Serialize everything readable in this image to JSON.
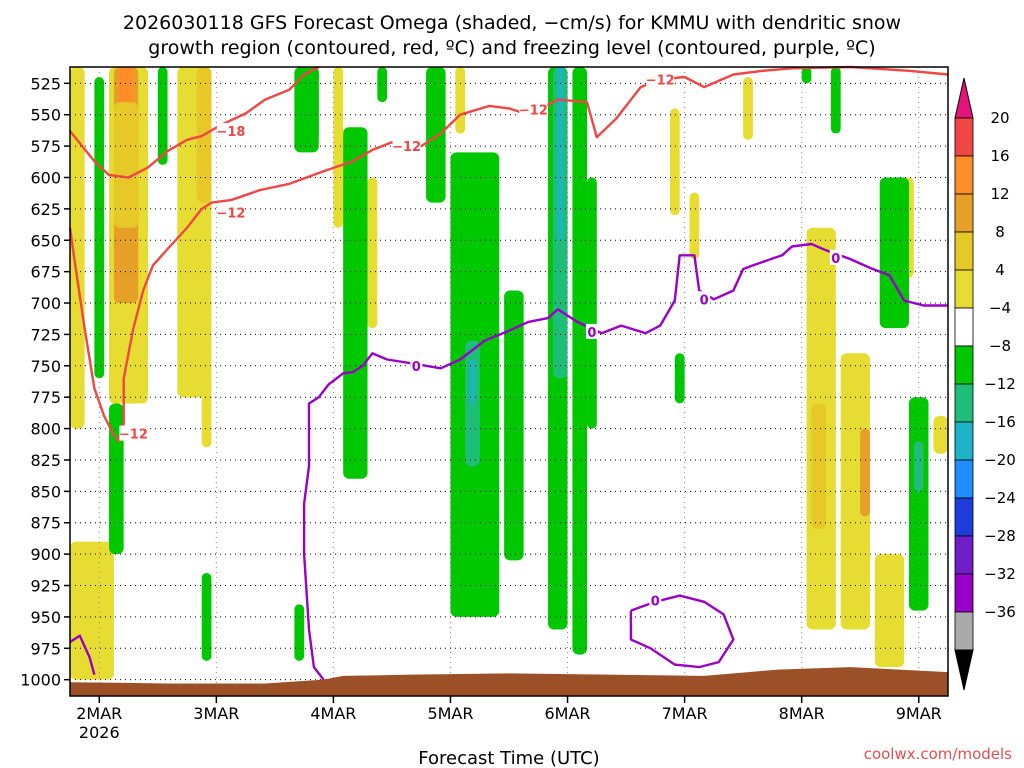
{
  "title_line1": "2026030118 GFS Forecast Omega (shaded, −cm/s) for KMMU with dendritic snow",
  "title_line2": "growth region (contoured, red, ºC) and freezing level (contoured, purple, ºC)",
  "credit": "coolwx.com/models",
  "colors": {
    "snow_contour": "#f04646",
    "freezing_contour": "#9a00c8",
    "ground": "#9c5028"
  },
  "chart_data": {
    "type": "heatmap",
    "title": "2026030118 GFS Forecast Omega (shaded, −cm/s) for KMMU with dendritic snow growth region (contoured, red, ºC) and freezing level (contoured, purple, ºC)",
    "xlabel": "Forecast Time (UTC)",
    "x_unit": "hours",
    "x_ticks": [
      {
        "hour": 6,
        "label": "2MAR",
        "sublabel": "2026"
      },
      {
        "hour": 30,
        "label": "3MAR",
        "sublabel": ""
      },
      {
        "hour": 54,
        "label": "4MAR",
        "sublabel": ""
      },
      {
        "hour": 78,
        "label": "5MAR",
        "sublabel": ""
      },
      {
        "hour": 102,
        "label": "6MAR",
        "sublabel": ""
      },
      {
        "hour": 126,
        "label": "7MAR",
        "sublabel": ""
      },
      {
        "hour": 150,
        "label": "8MAR",
        "sublabel": ""
      },
      {
        "hour": 174,
        "label": "9MAR",
        "sublabel": ""
      }
    ],
    "xlim": [
      0,
      180
    ],
    "y_ticks": [
      525,
      550,
      575,
      600,
      625,
      650,
      675,
      700,
      725,
      750,
      775,
      800,
      825,
      850,
      875,
      900,
      925,
      950,
      975,
      1000
    ],
    "ylim": [
      512,
      1013
    ],
    "colorbar": {
      "labels": [
        "20",
        "16",
        "12",
        "8",
        "4",
        "−4",
        "−8",
        "−12",
        "−16",
        "−20",
        "−24",
        "−28",
        "−32",
        "−36"
      ],
      "colors": [
        "#f04646",
        "#ff8c28",
        "#e6a028",
        "#e6c828",
        "#e6dc32",
        "#ffffff",
        "#00c800",
        "#1ebe78",
        "#1eb4c8",
        "#1e8cff",
        "#1e3cdc",
        "#6e1ec8",
        "#9600c8",
        "#aaaaaa"
      ],
      "top_arrow_color": "#e6147a",
      "bottom_arrow_color": "#000000"
    },
    "omega_regions": [
      {
        "value": 4,
        "t0": 0,
        "t1": 3,
        "p0": 512,
        "p1": 800
      },
      {
        "value": 4,
        "t0": 8,
        "t1": 16,
        "p0": 512,
        "p1": 780
      },
      {
        "value": 12,
        "t0": 9,
        "t1": 14,
        "p0": 512,
        "p1": 700
      },
      {
        "value": 16,
        "t0": 10,
        "t1": 13,
        "p0": 512,
        "p1": 550
      },
      {
        "value": 8,
        "t0": 9,
        "t1": 14,
        "p0": 540,
        "p1": 640
      },
      {
        "value": 4,
        "t0": 22,
        "t1": 29,
        "p0": 512,
        "p1": 775
      },
      {
        "value": 8,
        "t0": 26,
        "t1": 29,
        "p0": 512,
        "p1": 620
      },
      {
        "value": 4,
        "t0": 27,
        "t1": 29,
        "p0": 760,
        "p1": 815
      },
      {
        "value": 4,
        "t0": 0,
        "t1": 9,
        "p0": 890,
        "p1": 1000
      },
      {
        "value": -4,
        "t0": 5,
        "t1": 7,
        "p0": 520,
        "p1": 760
      },
      {
        "value": -4,
        "t0": 18,
        "t1": 20,
        "p0": 512,
        "p1": 590
      },
      {
        "value": -4,
        "t0": 8,
        "t1": 11,
        "p0": 780,
        "p1": 900
      },
      {
        "value": -4,
        "t0": 27,
        "t1": 29,
        "p0": 915,
        "p1": 985
      },
      {
        "value": -4,
        "t0": 46,
        "t1": 48,
        "p0": 940,
        "p1": 985
      },
      {
        "value": -4,
        "t0": 46,
        "t1": 51,
        "p0": 512,
        "p1": 580
      },
      {
        "value": -4,
        "t0": 49,
        "t1": 51,
        "p0": 512,
        "p1": 570
      },
      {
        "value": 4,
        "t0": 54,
        "t1": 56,
        "p0": 512,
        "p1": 640
      },
      {
        "value": -4,
        "t0": 56,
        "t1": 61,
        "p0": 560,
        "p1": 840
      },
      {
        "value": 4,
        "t0": 61,
        "t1": 63,
        "p0": 600,
        "p1": 720
      },
      {
        "value": -4,
        "t0": 63,
        "t1": 65,
        "p0": 512,
        "p1": 540
      },
      {
        "value": -4,
        "t0": 73,
        "t1": 77,
        "p0": 512,
        "p1": 620
      },
      {
        "value": 4,
        "t0": 79,
        "t1": 81,
        "p0": 512,
        "p1": 565
      },
      {
        "value": -4,
        "t0": 78,
        "t1": 88,
        "p0": 580,
        "p1": 950
      },
      {
        "value": -12,
        "t0": 81,
        "t1": 84,
        "p0": 730,
        "p1": 830
      },
      {
        "value": -16,
        "t0": 82,
        "t1": 83,
        "p0": 745,
        "p1": 780
      },
      {
        "value": -4,
        "t0": 89,
        "t1": 93,
        "p0": 690,
        "p1": 905
      },
      {
        "value": -4,
        "t0": 98,
        "t1": 102,
        "p0": 512,
        "p1": 960
      },
      {
        "value": -12,
        "t0": 99,
        "t1": 102,
        "p0": 512,
        "p1": 760
      },
      {
        "value": -16,
        "t0": 100,
        "t1": 101,
        "p0": 512,
        "p1": 650
      },
      {
        "value": -4,
        "t0": 103,
        "t1": 106,
        "p0": 512,
        "p1": 980
      },
      {
        "value": -4,
        "t0": 106,
        "t1": 108,
        "p0": 600,
        "p1": 800
      },
      {
        "value": 4,
        "t0": 123,
        "t1": 125,
        "p0": 545,
        "p1": 630
      },
      {
        "value": 4,
        "t0": 127,
        "t1": 129,
        "p0": 612,
        "p1": 665
      },
      {
        "value": -4,
        "t0": 124,
        "t1": 126,
        "p0": 740,
        "p1": 780
      },
      {
        "value": 4,
        "t0": 138,
        "t1": 140,
        "p0": 520,
        "p1": 570
      },
      {
        "value": -4,
        "t0": 150,
        "t1": 152,
        "p0": 512,
        "p1": 525
      },
      {
        "value": -4,
        "t0": 156,
        "t1": 158,
        "p0": 512,
        "p1": 565
      },
      {
        "value": 4,
        "t0": 151,
        "t1": 157,
        "p0": 640,
        "p1": 960
      },
      {
        "value": 8,
        "t0": 152,
        "t1": 155,
        "p0": 780,
        "p1": 880
      },
      {
        "value": 4,
        "t0": 158,
        "t1": 164,
        "p0": 740,
        "p1": 960
      },
      {
        "value": 12,
        "t0": 162,
        "t1": 164,
        "p0": 800,
        "p1": 870
      },
      {
        "value": 4,
        "t0": 170,
        "t1": 173,
        "p0": 600,
        "p1": 680
      },
      {
        "value": -4,
        "t0": 166,
        "t1": 172,
        "p0": 600,
        "p1": 720
      },
      {
        "value": -4,
        "t0": 172,
        "t1": 176,
        "p0": 775,
        "p1": 945
      },
      {
        "value": -12,
        "t0": 173,
        "t1": 175,
        "p0": 810,
        "p1": 850
      },
      {
        "value": 4,
        "t0": 165,
        "t1": 171,
        "p0": 900,
        "p1": 990
      },
      {
        "value": 4,
        "t0": 177,
        "t1": 180,
        "p0": 790,
        "p1": 820
      }
    ],
    "snow_growth_contours": [
      {
        "level": -18,
        "points": [
          [
            0,
            563
          ],
          [
            5,
            587
          ],
          [
            8,
            598
          ],
          [
            12,
            600
          ],
          [
            16,
            592
          ],
          [
            20,
            579
          ],
          [
            24,
            570
          ],
          [
            27,
            567
          ],
          [
            31,
            558
          ],
          [
            36,
            549
          ],
          [
            40,
            538
          ],
          [
            45,
            530
          ],
          [
            48,
            518
          ],
          [
            51,
            512
          ]
        ]
      },
      {
        "level": -12,
        "points": [
          [
            0,
            640
          ],
          [
            1,
            668
          ],
          [
            3,
            720
          ],
          [
            5,
            768
          ],
          [
            7,
            790
          ],
          [
            9,
            805
          ],
          [
            10,
            810
          ],
          [
            11,
            796
          ],
          [
            11,
            760
          ],
          [
            13,
            720
          ],
          [
            15,
            690
          ],
          [
            17,
            670
          ],
          [
            20,
            657
          ],
          [
            24,
            640
          ],
          [
            27,
            625
          ],
          [
            29,
            620
          ],
          [
            33,
            618
          ],
          [
            39,
            610
          ],
          [
            45,
            605
          ],
          [
            52,
            595
          ],
          [
            58,
            587
          ],
          [
            62,
            578
          ],
          [
            66,
            572
          ],
          [
            72,
            575
          ],
          [
            76,
            565
          ],
          [
            80,
            550
          ],
          [
            86,
            543
          ],
          [
            90,
            545
          ],
          [
            94,
            550
          ],
          [
            100,
            538
          ],
          [
            106,
            540
          ],
          [
            108,
            568
          ],
          [
            112,
            553
          ],
          [
            117,
            528
          ],
          [
            121,
            522
          ],
          [
            126,
            520
          ],
          [
            130,
            528
          ],
          [
            136,
            518
          ],
          [
            142,
            515
          ],
          [
            148,
            513
          ],
          [
            160,
            512
          ],
          [
            172,
            515
          ],
          [
            180,
            518
          ]
        ]
      }
    ],
    "freezing_contours": [
      {
        "level": 0,
        "points": [
          [
            0,
            970
          ],
          [
            2,
            965
          ],
          [
            4,
            982
          ],
          [
            5,
            996
          ]
        ]
      },
      {
        "level": 0,
        "points": [
          [
            52,
            1000
          ],
          [
            50,
            990
          ],
          [
            49,
            960
          ],
          [
            48,
            900
          ],
          [
            48,
            860
          ],
          [
            49,
            830
          ],
          [
            49,
            780
          ],
          [
            51,
            775
          ],
          [
            53,
            765
          ],
          [
            56,
            756
          ],
          [
            58,
            755
          ],
          [
            60,
            750
          ],
          [
            62,
            740
          ],
          [
            65,
            745
          ],
          [
            70,
            748
          ],
          [
            76,
            752
          ],
          [
            80,
            745
          ],
          [
            85,
            730
          ],
          [
            90,
            722
          ],
          [
            94,
            715
          ],
          [
            98,
            712
          ],
          [
            100,
            705
          ],
          [
            104,
            715
          ],
          [
            109,
            724
          ],
          [
            113,
            718
          ],
          [
            118,
            724
          ],
          [
            121,
            718
          ],
          [
            124,
            698
          ],
          [
            125,
            662
          ],
          [
            128,
            662
          ],
          [
            129,
            690
          ],
          [
            132,
            697
          ],
          [
            136,
            690
          ],
          [
            138,
            673
          ],
          [
            140,
            670
          ],
          [
            143,
            666
          ],
          [
            146,
            662
          ],
          [
            148,
            655
          ],
          [
            152,
            653
          ],
          [
            155,
            658
          ],
          [
            160,
            665
          ],
          [
            164,
            672
          ],
          [
            168,
            678
          ],
          [
            171,
            698
          ],
          [
            175,
            702
          ],
          [
            180,
            702
          ]
        ]
      },
      {
        "level": 0,
        "points": [
          [
            115,
            945
          ],
          [
            120,
            938
          ],
          [
            125,
            933
          ],
          [
            130,
            938
          ],
          [
            134,
            948
          ],
          [
            136,
            968
          ],
          [
            133,
            986
          ],
          [
            129,
            990
          ],
          [
            124,
            988
          ],
          [
            119,
            975
          ],
          [
            115,
            968
          ],
          [
            115,
            945
          ]
        ]
      }
    ],
    "contour_labels": [
      {
        "text": "−18",
        "t": 33,
        "p": 563,
        "kind": "snow"
      },
      {
        "text": "−12",
        "t": 33,
        "p": 628,
        "kind": "snow"
      },
      {
        "text": "−12",
        "t": 13,
        "p": 804,
        "kind": "snow"
      },
      {
        "text": "−12",
        "t": 69,
        "p": 575,
        "kind": "snow"
      },
      {
        "text": "−12",
        "t": 95,
        "p": 546,
        "kind": "snow"
      },
      {
        "text": "−12",
        "t": 121,
        "p": 522,
        "kind": "snow"
      },
      {
        "text": "0",
        "t": 71,
        "p": 750,
        "kind": "freeze"
      },
      {
        "text": "0",
        "t": 107,
        "p": 723,
        "kind": "freeze"
      },
      {
        "text": "0",
        "t": 130,
        "p": 697,
        "kind": "freeze"
      },
      {
        "text": "0",
        "t": 157,
        "p": 664,
        "kind": "freeze"
      },
      {
        "text": "0",
        "t": 120,
        "p": 937,
        "kind": "freeze"
      }
    ],
    "ground": [
      [
        0,
        1002
      ],
      [
        20,
        1003
      ],
      [
        40,
        1003
      ],
      [
        52,
        1000
      ],
      [
        56,
        997
      ],
      [
        70,
        996
      ],
      [
        90,
        995
      ],
      [
        110,
        996
      ],
      [
        130,
        997
      ],
      [
        145,
        992
      ],
      [
        160,
        990
      ],
      [
        170,
        992
      ],
      [
        180,
        994
      ]
    ]
  }
}
